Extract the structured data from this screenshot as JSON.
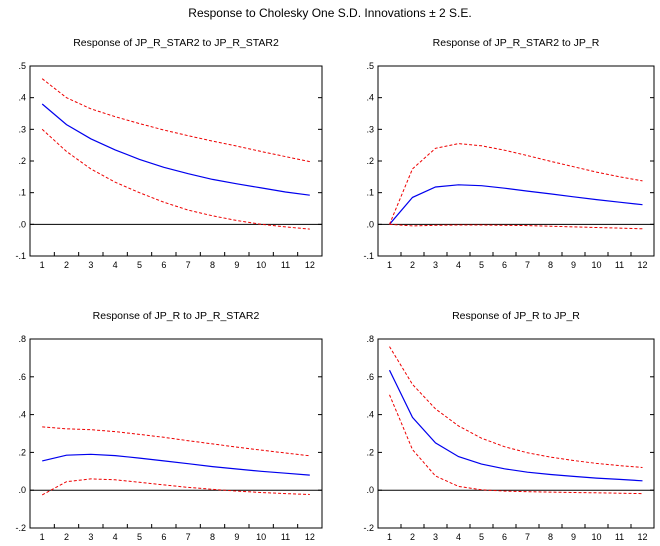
{
  "figure": {
    "title": "Response to Cholesky One S.D. Innovations ± 2 S.E."
  },
  "colors": {
    "response": "#0000ee",
    "bands": "#ee0000",
    "zero_line": "#000000",
    "frame": "#000000"
  },
  "chart_data": [
    {
      "type": "line",
      "title": "Response of JP_R_STAR2 to JP_R_STAR2",
      "x": [
        1,
        2,
        3,
        4,
        5,
        6,
        7,
        8,
        9,
        10,
        11,
        12
      ],
      "ylim": [
        -0.1,
        0.5
      ],
      "yticks": [
        -0.1,
        0.0,
        0.1,
        0.2,
        0.3,
        0.4,
        0.5
      ],
      "ytick_labels": [
        "-.1",
        ".0",
        ".1",
        ".2",
        ".3",
        ".4",
        ".5"
      ],
      "series": [
        {
          "role": "response",
          "values": [
            0.38,
            0.315,
            0.27,
            0.235,
            0.205,
            0.18,
            0.16,
            0.142,
            0.128,
            0.115,
            0.102,
            0.092
          ]
        },
        {
          "role": "upper",
          "values": [
            0.46,
            0.4,
            0.365,
            0.34,
            0.318,
            0.298,
            0.28,
            0.263,
            0.247,
            0.23,
            0.214,
            0.198
          ]
        },
        {
          "role": "lower",
          "values": [
            0.3,
            0.23,
            0.175,
            0.133,
            0.1,
            0.07,
            0.045,
            0.027,
            0.012,
            0.0,
            -0.008,
            -0.015
          ]
        }
      ]
    },
    {
      "type": "line",
      "title": "Response of JP_R_STAR2 to JP_R",
      "x": [
        1,
        2,
        3,
        4,
        5,
        6,
        7,
        8,
        9,
        10,
        11,
        12
      ],
      "ylim": [
        -0.1,
        0.5
      ],
      "yticks": [
        -0.1,
        0.0,
        0.1,
        0.2,
        0.3,
        0.4,
        0.5
      ],
      "ytick_labels": [
        "-.1",
        ".0",
        ".1",
        ".2",
        ".3",
        ".4",
        ".5"
      ],
      "series": [
        {
          "role": "response",
          "values": [
            0.0,
            0.085,
            0.118,
            0.125,
            0.122,
            0.114,
            0.105,
            0.096,
            0.087,
            0.078,
            0.07,
            0.062
          ]
        },
        {
          "role": "upper",
          "values": [
            0.0,
            0.175,
            0.24,
            0.255,
            0.248,
            0.234,
            0.217,
            0.199,
            0.182,
            0.165,
            0.15,
            0.137
          ]
        },
        {
          "role": "lower",
          "values": [
            0.0,
            -0.005,
            -0.003,
            -0.002,
            -0.002,
            -0.003,
            -0.004,
            -0.006,
            -0.008,
            -0.01,
            -0.012,
            -0.014
          ]
        }
      ]
    },
    {
      "type": "line",
      "title": "Response of JP_R to JP_R_STAR2",
      "x": [
        1,
        2,
        3,
        4,
        5,
        6,
        7,
        8,
        9,
        10,
        11,
        12
      ],
      "ylim": [
        -0.2,
        0.8
      ],
      "yticks": [
        -0.2,
        0.0,
        0.2,
        0.4,
        0.6,
        0.8
      ],
      "ytick_labels": [
        "-.2",
        ".0",
        ".2",
        ".4",
        ".6",
        ".8"
      ],
      "series": [
        {
          "role": "response",
          "values": [
            0.155,
            0.185,
            0.19,
            0.183,
            0.17,
            0.155,
            0.14,
            0.125,
            0.112,
            0.1,
            0.09,
            0.08
          ]
        },
        {
          "role": "upper",
          "values": [
            0.335,
            0.325,
            0.32,
            0.31,
            0.295,
            0.28,
            0.262,
            0.245,
            0.228,
            0.212,
            0.197,
            0.182
          ]
        },
        {
          "role": "lower",
          "values": [
            -0.025,
            0.045,
            0.06,
            0.055,
            0.042,
            0.028,
            0.015,
            0.005,
            -0.005,
            -0.012,
            -0.018,
            -0.023
          ]
        }
      ]
    },
    {
      "type": "line",
      "title": "Response of JP_R to JP_R",
      "x": [
        1,
        2,
        3,
        4,
        5,
        6,
        7,
        8,
        9,
        10,
        11,
        12
      ],
      "ylim": [
        -0.2,
        0.8
      ],
      "yticks": [
        -0.2,
        0.0,
        0.2,
        0.4,
        0.6,
        0.8
      ],
      "ytick_labels": [
        "-.2",
        ".0",
        ".2",
        ".4",
        ".6",
        ".8"
      ],
      "series": [
        {
          "role": "response",
          "values": [
            0.635,
            0.385,
            0.25,
            0.178,
            0.138,
            0.113,
            0.095,
            0.083,
            0.073,
            0.064,
            0.057,
            0.05
          ]
        },
        {
          "role": "upper",
          "values": [
            0.76,
            0.56,
            0.43,
            0.34,
            0.275,
            0.23,
            0.198,
            0.175,
            0.157,
            0.142,
            0.13,
            0.12
          ]
        },
        {
          "role": "lower",
          "values": [
            0.505,
            0.215,
            0.075,
            0.02,
            0.002,
            -0.005,
            -0.008,
            -0.01,
            -0.012,
            -0.014,
            -0.016,
            -0.018
          ]
        }
      ]
    }
  ]
}
